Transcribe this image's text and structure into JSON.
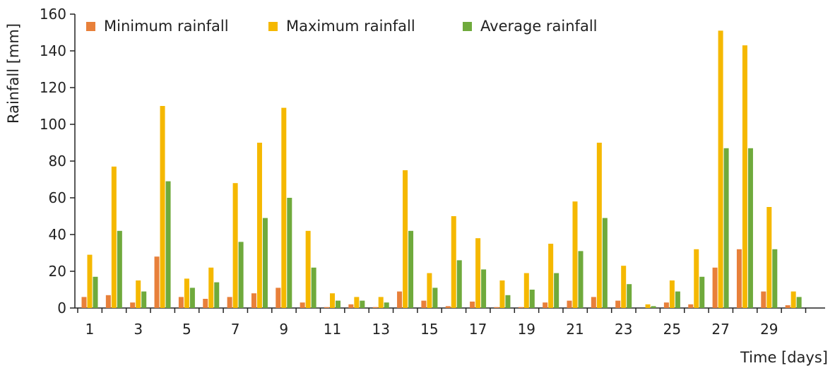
{
  "chart_data": {
    "type": "bar",
    "xlabel": "Time [days]",
    "ylabel": "Rainfall [mm]",
    "ylim": [
      0,
      160
    ],
    "yticks": [
      0,
      20,
      40,
      60,
      80,
      100,
      120,
      140,
      160
    ],
    "categories": [
      1,
      2,
      3,
      4,
      5,
      6,
      7,
      8,
      9,
      10,
      11,
      12,
      13,
      14,
      15,
      16,
      17,
      18,
      19,
      20,
      21,
      22,
      23,
      24,
      25,
      26,
      27,
      28,
      29,
      30
    ],
    "x_tick_labels": [
      "1",
      "3",
      "5",
      "7",
      "9",
      "11",
      "13",
      "15",
      "17",
      "19",
      "21",
      "23",
      "25",
      "27",
      "29"
    ],
    "grid": false,
    "legend_position": "top",
    "series": [
      {
        "name": "Minimum rainfall",
        "color": "#E8803A",
        "values": [
          6,
          7,
          3,
          28,
          6,
          5,
          6,
          8,
          11,
          3,
          0.5,
          2,
          0.5,
          9,
          4,
          1,
          3.5,
          0.5,
          0.5,
          3,
          4,
          6,
          4,
          0,
          3,
          2,
          22,
          32,
          9,
          1.5
        ]
      },
      {
        "name": "Maximum rainfall",
        "color": "#F5B800",
        "values": [
          29,
          77,
          15,
          110,
          16,
          22,
          68,
          90,
          109,
          42,
          8,
          6,
          6,
          75,
          19,
          50,
          38,
          15,
          19,
          35,
          58,
          90,
          23,
          2,
          15,
          32,
          151,
          143,
          55,
          9
        ]
      },
      {
        "name": "Average rainfall",
        "color": "#6FAA3C",
        "values": [
          17,
          42,
          9,
          69,
          11,
          14,
          36,
          49,
          60,
          22,
          4,
          4,
          3,
          42,
          11,
          26,
          21,
          7,
          10,
          19,
          31,
          49,
          13,
          1,
          9,
          17,
          87,
          87,
          32,
          6
        ]
      }
    ]
  }
}
